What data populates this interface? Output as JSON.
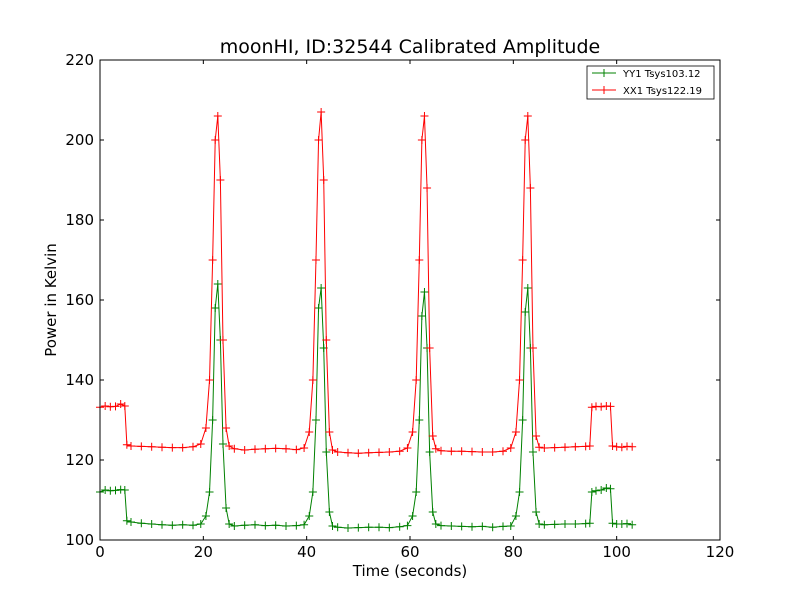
{
  "chart_data": {
    "type": "line",
    "title": "moonHI, ID:32544 Calibrated Amplitude",
    "xlabel": "Time (seconds)",
    "ylabel": "Power in Kelvin",
    "xlim": [
      0,
      120
    ],
    "ylim": [
      100,
      220
    ],
    "xticks": [
      0,
      20,
      40,
      60,
      80,
      100,
      120
    ],
    "yticks": [
      100,
      120,
      140,
      160,
      180,
      200,
      220
    ],
    "grid": false,
    "legend_position": "top-right",
    "marker": "plus",
    "series": [
      {
        "name": "YY1 Tsys103.12",
        "color": "#008000",
        "x": [
          0,
          1,
          2,
          3,
          4,
          4.8,
          5.2,
          6,
          8,
          10,
          12,
          14,
          16,
          18,
          19.5,
          20.5,
          21.2,
          21.8,
          22.3,
          22.8,
          23.3,
          23.8,
          24.4,
          25,
          26,
          28,
          30,
          32,
          34,
          36,
          38,
          39.5,
          40.5,
          41.2,
          41.8,
          42.3,
          42.8,
          43.3,
          43.8,
          44.4,
          45,
          46,
          48,
          50,
          52,
          54,
          56,
          58,
          59.5,
          60.5,
          61.2,
          61.8,
          62.3,
          62.8,
          63.3,
          63.8,
          64.4,
          65,
          66,
          68,
          70,
          72,
          74,
          76,
          78,
          79.5,
          80.5,
          81.2,
          81.8,
          82.3,
          82.8,
          83.3,
          83.8,
          84.4,
          85,
          86,
          88,
          90,
          92,
          94,
          94.8,
          95.2,
          96,
          97,
          98,
          98.8,
          99.2,
          100,
          101,
          102,
          103
        ],
        "values": [
          112,
          112.5,
          112.3,
          112.4,
          112.6,
          112.5,
          104.8,
          104.5,
          104.2,
          104,
          103.8,
          103.7,
          103.8,
          103.7,
          104,
          106,
          112,
          130,
          158,
          164,
          150,
          124,
          108,
          104,
          103.5,
          103.7,
          103.8,
          103.6,
          103.7,
          103.5,
          103.6,
          103.8,
          106,
          112,
          130,
          158,
          163,
          148,
          122,
          107,
          103.5,
          103.2,
          103,
          103.1,
          103.2,
          103.2,
          103.1,
          103.3,
          103.6,
          106,
          112,
          130,
          156,
          162,
          148,
          122,
          107,
          104,
          103.6,
          103.5,
          103.4,
          103.3,
          103.4,
          103.2,
          103.4,
          103.5,
          106,
          112,
          130,
          157,
          163,
          148,
          122,
          107,
          104,
          103.8,
          103.9,
          104,
          104,
          104.1,
          104.2,
          112,
          112.3,
          112.5,
          113,
          112.8,
          104.2,
          104,
          104,
          104.1,
          103.8
        ]
      },
      {
        "name": "XX1 Tsys122.19",
        "color": "#ff0000",
        "x": [
          0,
          1,
          2,
          3,
          4,
          4.8,
          5.2,
          6,
          8,
          10,
          12,
          14,
          16,
          18,
          19.5,
          20.5,
          21.2,
          21.8,
          22.3,
          22.8,
          23.3,
          23.8,
          24.4,
          25,
          26,
          28,
          30,
          32,
          34,
          36,
          38,
          39.5,
          40.5,
          41.2,
          41.8,
          42.3,
          42.8,
          43.3,
          43.8,
          44.4,
          45,
          46,
          48,
          50,
          52,
          54,
          56,
          58,
          59.5,
          60.5,
          61.2,
          61.8,
          62.3,
          62.8,
          63.3,
          63.8,
          64.4,
          65,
          66,
          68,
          70,
          72,
          74,
          76,
          78,
          79.5,
          80.5,
          81.2,
          81.8,
          82.3,
          82.8,
          83.3,
          83.8,
          84.4,
          85,
          86,
          88,
          90,
          92,
          94,
          94.8,
          95.2,
          96,
          97,
          98,
          98.8,
          99.2,
          100,
          101,
          102,
          103
        ],
        "values": [
          133.2,
          133.5,
          133.3,
          133.4,
          134,
          133.5,
          123.8,
          123.5,
          123.4,
          123.3,
          123.2,
          123.1,
          123.1,
          123.3,
          124,
          128,
          140,
          170,
          200,
          206,
          190,
          150,
          128,
          123.5,
          122.8,
          122.5,
          122.7,
          122.8,
          122.9,
          122.8,
          122.6,
          123,
          127,
          140,
          170,
          200,
          207,
          190,
          150,
          127,
          122.5,
          122,
          121.8,
          121.7,
          121.8,
          121.9,
          122,
          122.2,
          123,
          127,
          140,
          170,
          200,
          206,
          188,
          148,
          126,
          122.8,
          122.3,
          122.2,
          122.2,
          122.1,
          122,
          122,
          122.2,
          123,
          127,
          140,
          170,
          200,
          206,
          188,
          148,
          126,
          123.2,
          123,
          123.1,
          123.2,
          123.3,
          123.4,
          123.5,
          133.2,
          133.4,
          133.3,
          133.5,
          133.4,
          123.5,
          123.3,
          123.2,
          123.4,
          123.3
        ]
      }
    ]
  }
}
